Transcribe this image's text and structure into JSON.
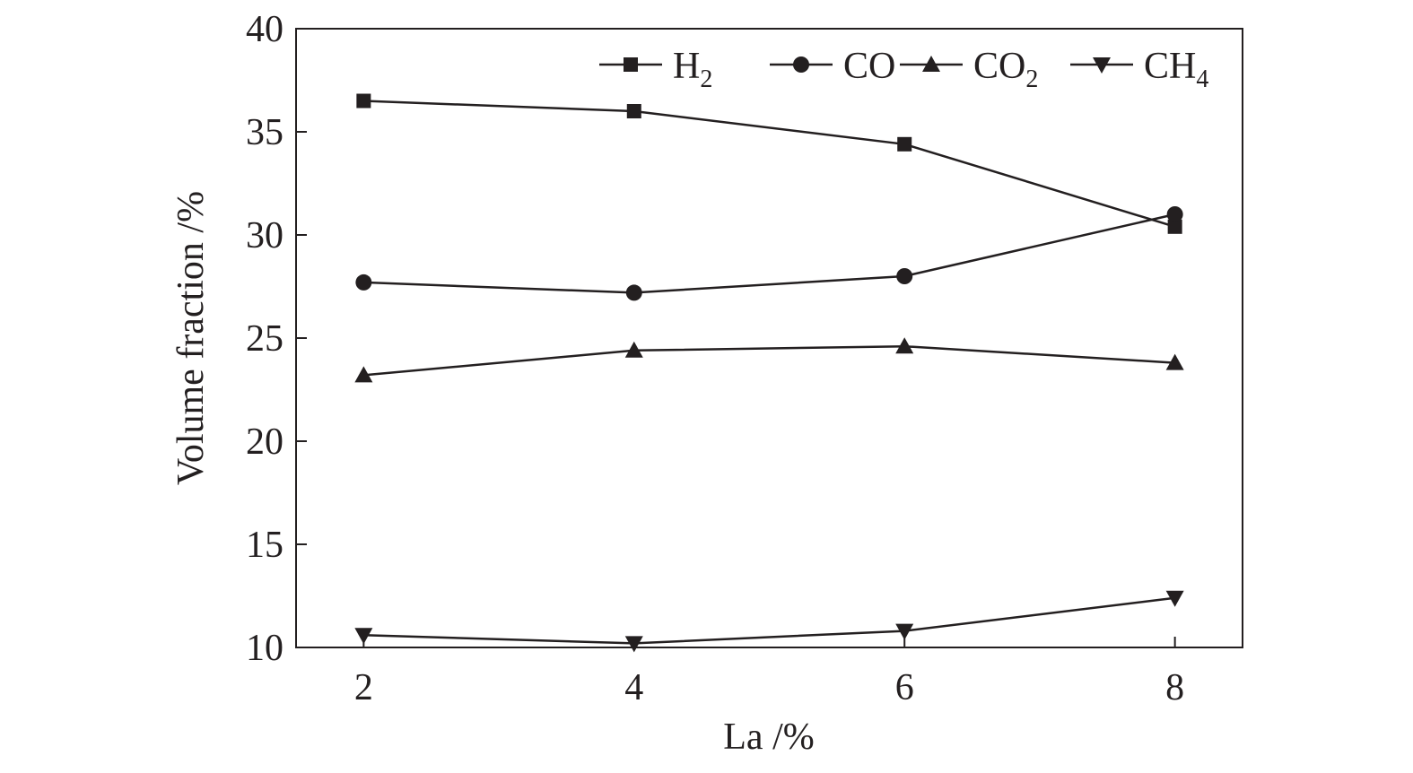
{
  "chart_data": {
    "type": "line",
    "xlabel": "La /%",
    "ylabel": "Volume fraction /%",
    "x": [
      2,
      4,
      6,
      8
    ],
    "xlim": [
      1.5,
      8.5
    ],
    "ylim": [
      10,
      40
    ],
    "xticks": [
      "2",
      "4",
      "6",
      "8"
    ],
    "yticks": [
      "10",
      "15",
      "20",
      "25",
      "30",
      "35",
      "40"
    ],
    "grid": false,
    "legend_position": "top-right",
    "series": [
      {
        "name": "H2",
        "label_main": "H",
        "label_sub": "2",
        "marker": "square",
        "values": [
          36.5,
          36.0,
          34.4,
          30.4
        ]
      },
      {
        "name": "CO",
        "label_main": "CO",
        "label_sub": "",
        "marker": "circle",
        "values": [
          27.7,
          27.2,
          28.0,
          31.0
        ]
      },
      {
        "name": "CO2",
        "label_main": "CO",
        "label_sub": "2",
        "marker": "triangle-up",
        "values": [
          23.2,
          24.4,
          24.6,
          23.8
        ]
      },
      {
        "name": "CH4",
        "label_main": "CH",
        "label_sub": "4",
        "marker": "triangle-down",
        "values": [
          10.6,
          10.2,
          10.8,
          12.4
        ]
      }
    ],
    "colors": {
      "line": "#231f20",
      "axis": "#231f20"
    }
  }
}
